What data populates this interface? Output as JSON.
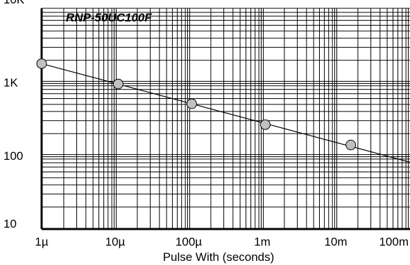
{
  "chart_data": {
    "type": "line",
    "title": "RNP-50UC100F",
    "xlabel": "Pulse With (seconds)",
    "ylabel": "",
    "x_scale": "log",
    "y_scale": "log",
    "xlim": [
      1e-06,
      0.2
    ],
    "ylim": [
      10,
      10000
    ],
    "x_ticks": [
      {
        "value": 1e-06,
        "label": "1µ"
      },
      {
        "value": 1e-05,
        "label": "10µ"
      },
      {
        "value": 0.0001,
        "label": "100µ"
      },
      {
        "value": 0.001,
        "label": "1m"
      },
      {
        "value": 0.01,
        "label": "10m"
      },
      {
        "value": 0.1,
        "label": "100m"
      }
    ],
    "y_ticks": [
      {
        "value": 10,
        "label": "10"
      },
      {
        "value": 100,
        "label": "100"
      },
      {
        "value": 1000,
        "label": "1K"
      },
      {
        "value": 10000,
        "label": "10K"
      }
    ],
    "grid": true,
    "legend": "none",
    "series": [
      {
        "line": {
          "x": [
            1e-06,
            0.2
          ],
          "y": [
            1800,
            68
          ]
        },
        "points": [
          {
            "x": 1e-06,
            "y": 1800
          },
          {
            "x": 1.1e-05,
            "y": 950
          },
          {
            "x": 0.00011,
            "y": 510
          },
          {
            "x": 0.0011,
            "y": 265
          },
          {
            "x": 0.016,
            "y": 140
          }
        ]
      }
    ],
    "colors": {
      "line": "#000000",
      "marker_fill": "#c0c0c0",
      "marker_stroke": "#000000",
      "grid": "#000000"
    }
  }
}
